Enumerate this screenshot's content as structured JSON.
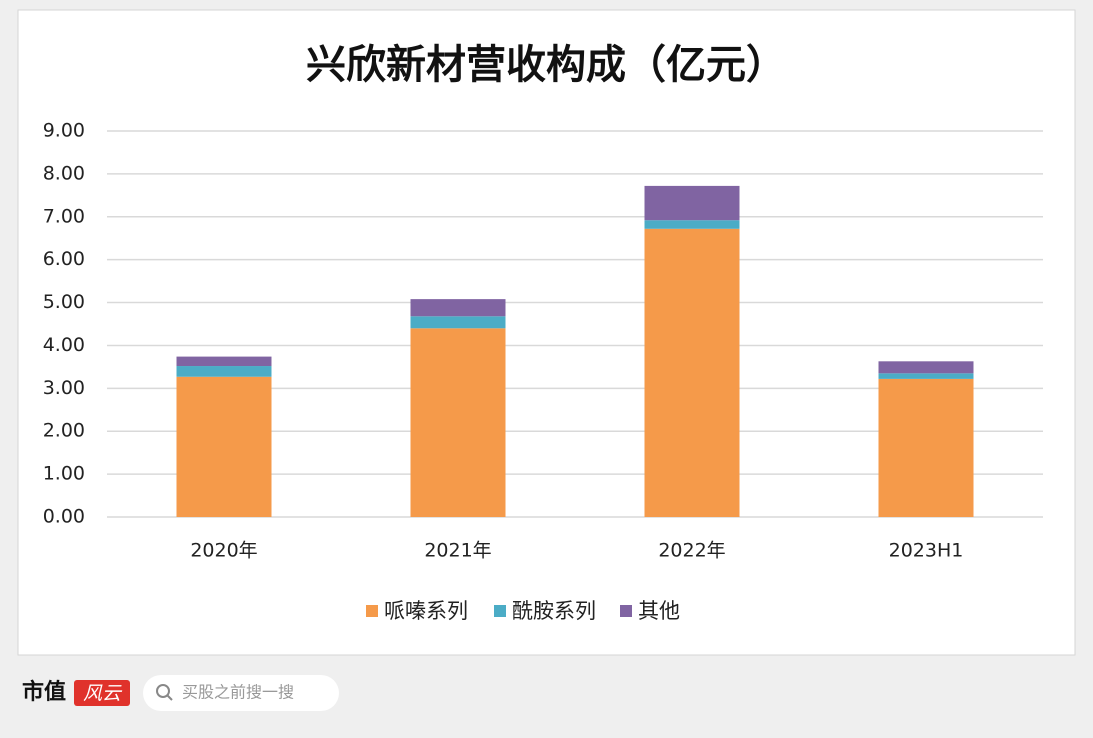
{
  "chart_data": {
    "type": "stacked_bar",
    "title": "兴欣新材营收构成（亿元）",
    "categories": [
      "2020年",
      "2021年",
      "2022年",
      "2023H1"
    ],
    "series": [
      {
        "name": "哌嗪系列",
        "color": "#f59a4a",
        "values": [
          3.27,
          4.4,
          6.72,
          3.22
        ]
      },
      {
        "name": "酰胺系列",
        "color": "#4bacc6",
        "values": [
          0.25,
          0.28,
          0.2,
          0.13
        ]
      },
      {
        "name": "其他",
        "color": "#8064a2",
        "values": [
          0.22,
          0.4,
          0.8,
          0.28
        ]
      }
    ],
    "ylim": [
      0,
      9
    ],
    "yticks": [
      {
        "value": 0,
        "label": "0.00"
      },
      {
        "value": 1,
        "label": "1.00"
      },
      {
        "value": 2,
        "label": "2.00"
      },
      {
        "value": 3,
        "label": "3.00"
      },
      {
        "value": 4,
        "label": "4.00"
      },
      {
        "value": 5,
        "label": "5.00"
      },
      {
        "value": 6,
        "label": "6.00"
      },
      {
        "value": 7,
        "label": "7.00"
      },
      {
        "value": 8,
        "label": "8.00"
      },
      {
        "value": 9,
        "label": "9.00"
      }
    ],
    "grid": true,
    "legend": "bottom"
  },
  "footer": {
    "brand": "市值",
    "badge": "风云",
    "search": "买股之前搜一搜"
  }
}
